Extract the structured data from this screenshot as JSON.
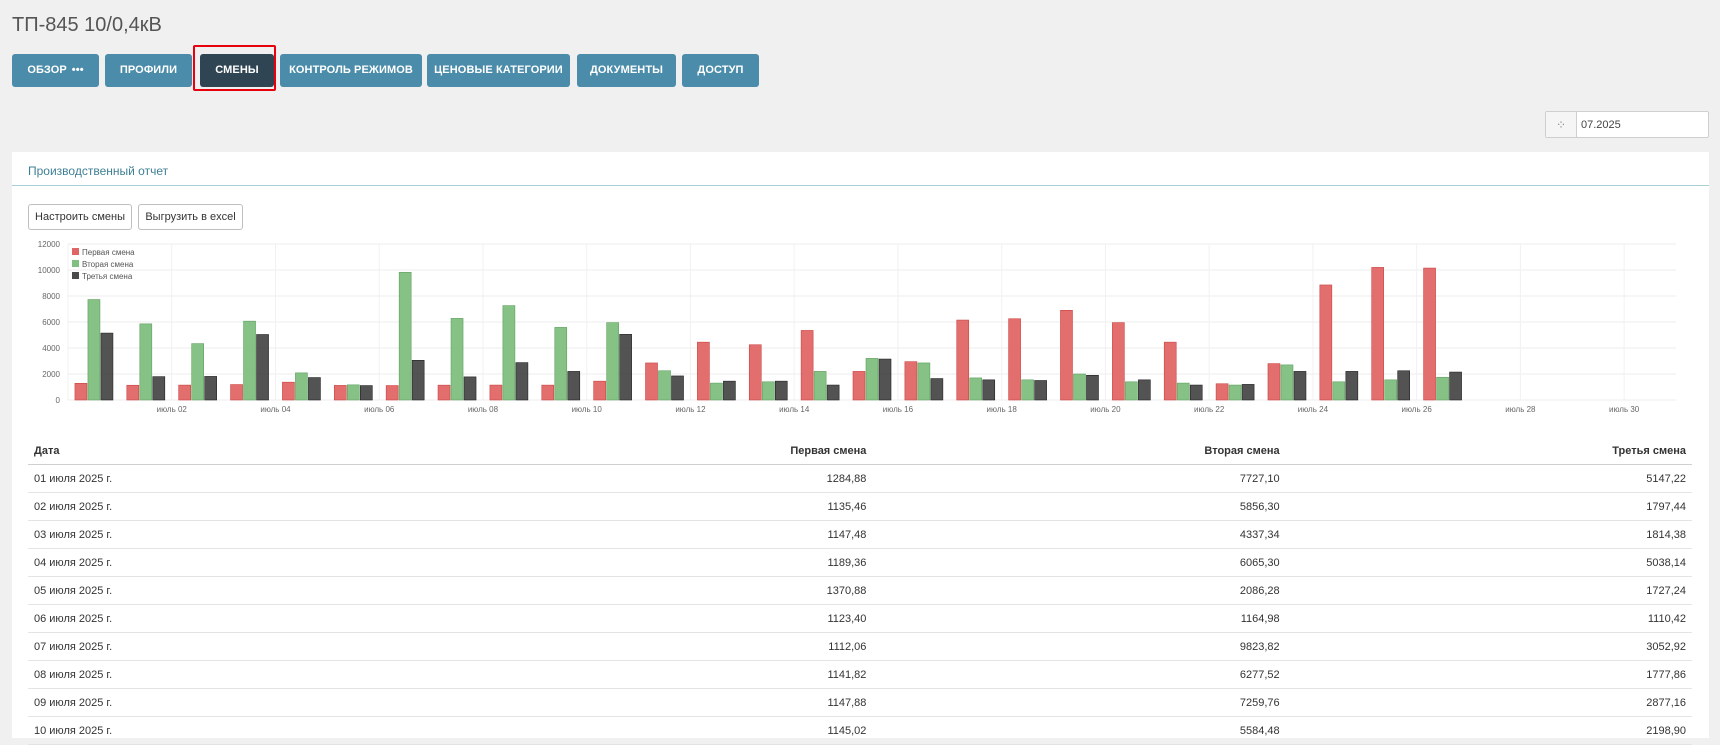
{
  "title": "ТП-845 10/0,4кВ",
  "tabs": [
    {
      "label": "ОБЗОР",
      "more": "•••"
    },
    {
      "label": "ПРОФИЛИ"
    },
    {
      "label": "СМЕНЫ",
      "active": true
    },
    {
      "label": "КОНТРОЛЬ РЕЖИМОВ"
    },
    {
      "label": "ЦЕНОВЫЕ КАТЕГОРИИ"
    },
    {
      "label": "ДОКУМЕНТЫ"
    },
    {
      "label": "ДОСТУП"
    }
  ],
  "date_picker": {
    "value": "07.2025"
  },
  "panel": {
    "title": "Производственный отчет",
    "configure_label": "Настроить смены",
    "export_label": "Выгрузить в excel"
  },
  "colors": {
    "shift1": "#e06666",
    "shift2": "#7fbf7f",
    "shift3": "#4a4a4a",
    "tab": "#4a8ca9",
    "tab_active": "#2f4553",
    "highlight": "#e8000c"
  },
  "chart_data": {
    "type": "bar",
    "categories": [
      "июль 01",
      "июль 02",
      "июль 03",
      "июль 04",
      "июль 05",
      "июль 06",
      "июль 07",
      "июль 08",
      "июль 09",
      "июль 10",
      "июль 11",
      "июль 12",
      "июль 13",
      "июль 14",
      "июль 15",
      "июль 16",
      "июль 17",
      "июль 18",
      "июль 19",
      "июль 20",
      "июль 21",
      "июль 22",
      "июль 23",
      "июль 24",
      "июль 25",
      "июль 26",
      "июль 27",
      "июль 28",
      "июль 29",
      "июль 30",
      "июль 31"
    ],
    "tick_labels": [
      "июль 02",
      "июль 04",
      "июль 06",
      "июль 08",
      "июль 10",
      "июль 12",
      "июль 14",
      "июль 16",
      "июль 18",
      "июль 20",
      "июль 22",
      "июль 24",
      "июль 26",
      "июль 28",
      "июль 30"
    ],
    "series": [
      {
        "name": "Первая смена",
        "values": [
          1285,
          1135,
          1147,
          1189,
          1371,
          1123,
          1112,
          1142,
          1148,
          1145,
          1450,
          2850,
          4450,
          4250,
          5350,
          2200,
          2950,
          6150,
          6250,
          6900,
          5950,
          4450,
          1250,
          2800,
          8850,
          10200,
          10150,
          null,
          null,
          null,
          null
        ]
      },
      {
        "name": "Вторая смена",
        "values": [
          7727,
          5856,
          4337,
          6065,
          2086,
          1165,
          9824,
          6278,
          7260,
          5584,
          5950,
          2250,
          1300,
          1400,
          2200,
          3200,
          2850,
          1700,
          1550,
          2000,
          1400,
          1300,
          1150,
          2700,
          1400,
          1550,
          1750,
          null,
          null,
          null,
          null
        ]
      },
      {
        "name": "Третья смена",
        "values": [
          5147,
          1797,
          1814,
          5038,
          1727,
          1110,
          3053,
          1778,
          2877,
          2199,
          5050,
          1850,
          1450,
          1450,
          1150,
          3150,
          1650,
          1550,
          1500,
          1900,
          1550,
          1150,
          1200,
          2200,
          2200,
          2250,
          2150,
          null,
          null,
          null,
          null
        ]
      }
    ],
    "ylim": [
      0,
      12000
    ],
    "yticks": [
      0,
      2000,
      4000,
      6000,
      8000,
      10000,
      12000
    ],
    "legend": "top-left",
    "grid": true
  },
  "table": {
    "headers": [
      "Дата",
      "Первая смена",
      "Вторая смена",
      "Третья смена"
    ],
    "rows": [
      [
        "01 июля 2025 г.",
        "1284,88",
        "7727,10",
        "5147,22"
      ],
      [
        "02 июля 2025 г.",
        "1135,46",
        "5856,30",
        "1797,44"
      ],
      [
        "03 июля 2025 г.",
        "1147,48",
        "4337,34",
        "1814,38"
      ],
      [
        "04 июля 2025 г.",
        "1189,36",
        "6065,30",
        "5038,14"
      ],
      [
        "05 июля 2025 г.",
        "1370,88",
        "2086,28",
        "1727,24"
      ],
      [
        "06 июля 2025 г.",
        "1123,40",
        "1164,98",
        "1110,42"
      ],
      [
        "07 июля 2025 г.",
        "1112,06",
        "9823,82",
        "3052,92"
      ],
      [
        "08 июля 2025 г.",
        "1141,82",
        "6277,52",
        "1777,86"
      ],
      [
        "09 июля 2025 г.",
        "1147,88",
        "7259,76",
        "2877,16"
      ],
      [
        "10 июля 2025 г.",
        "1145,02",
        "5584,48",
        "2198,90"
      ]
    ]
  }
}
